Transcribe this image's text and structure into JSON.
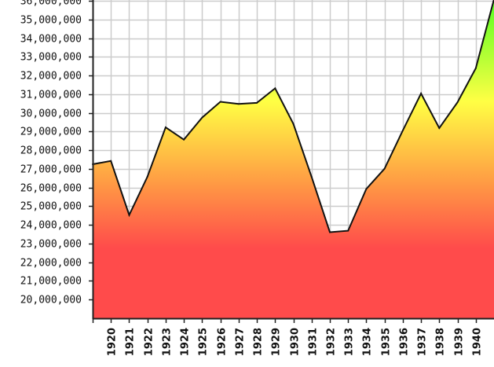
{
  "chart_data": {
    "type": "area",
    "x": [
      1919,
      1920,
      1921,
      1922,
      1923,
      1924,
      1925,
      1926,
      1927,
      1928,
      1929,
      1930,
      1931,
      1932,
      1933,
      1934,
      1935,
      1936,
      1937,
      1938,
      1939,
      1940,
      1941
    ],
    "x_tick_labels": [
      "1920",
      "1921",
      "1922",
      "1923",
      "1924",
      "1925",
      "1926",
      "1927",
      "1928",
      "1929",
      "1930",
      "1931",
      "1932",
      "1933",
      "1934",
      "1935",
      "1936",
      "1937",
      "1938",
      "1939",
      "1940"
    ],
    "series": [
      {
        "values": [
          27250000,
          27430000,
          24530000,
          26580000,
          29230000,
          28570000,
          29750000,
          30600000,
          30480000,
          30540000,
          31320000,
          29420000,
          26580000,
          23610000,
          23690000,
          25930000,
          27010000,
          29060000,
          31040000,
          29190000,
          30570000,
          32390000,
          36090000
        ]
      }
    ],
    "y_ticks": [
      20000000,
      21000000,
      22000000,
      23000000,
      24000000,
      25000000,
      26000000,
      27000000,
      28000000,
      29000000,
      30000000,
      31000000,
      32000000,
      33000000,
      34000000,
      35000000,
      36000000
    ],
    "y_tick_labels": [
      "20,000,000",
      "21,000,000",
      "22,000,000",
      "23,000,000",
      "24,000,000",
      "25,000,000",
      "26,000,000",
      "27,000,000",
      "28,000,000",
      "29,000,000",
      "30,000,000",
      "31,000,000",
      "32,000,000",
      "33,000,000",
      "34,000,000",
      "35,000,000",
      "36,000,000"
    ],
    "ylim": [
      19000000,
      36050000
    ],
    "grid": true,
    "title": "",
    "xlabel": "",
    "ylabel": "",
    "colors": {
      "fill_top": "#66ff33",
      "fill_mid": "#ffff44",
      "fill_bottom": "#ff4b4b",
      "line": "#111111",
      "grid": "#cccccc",
      "axis": "#222222"
    }
  }
}
